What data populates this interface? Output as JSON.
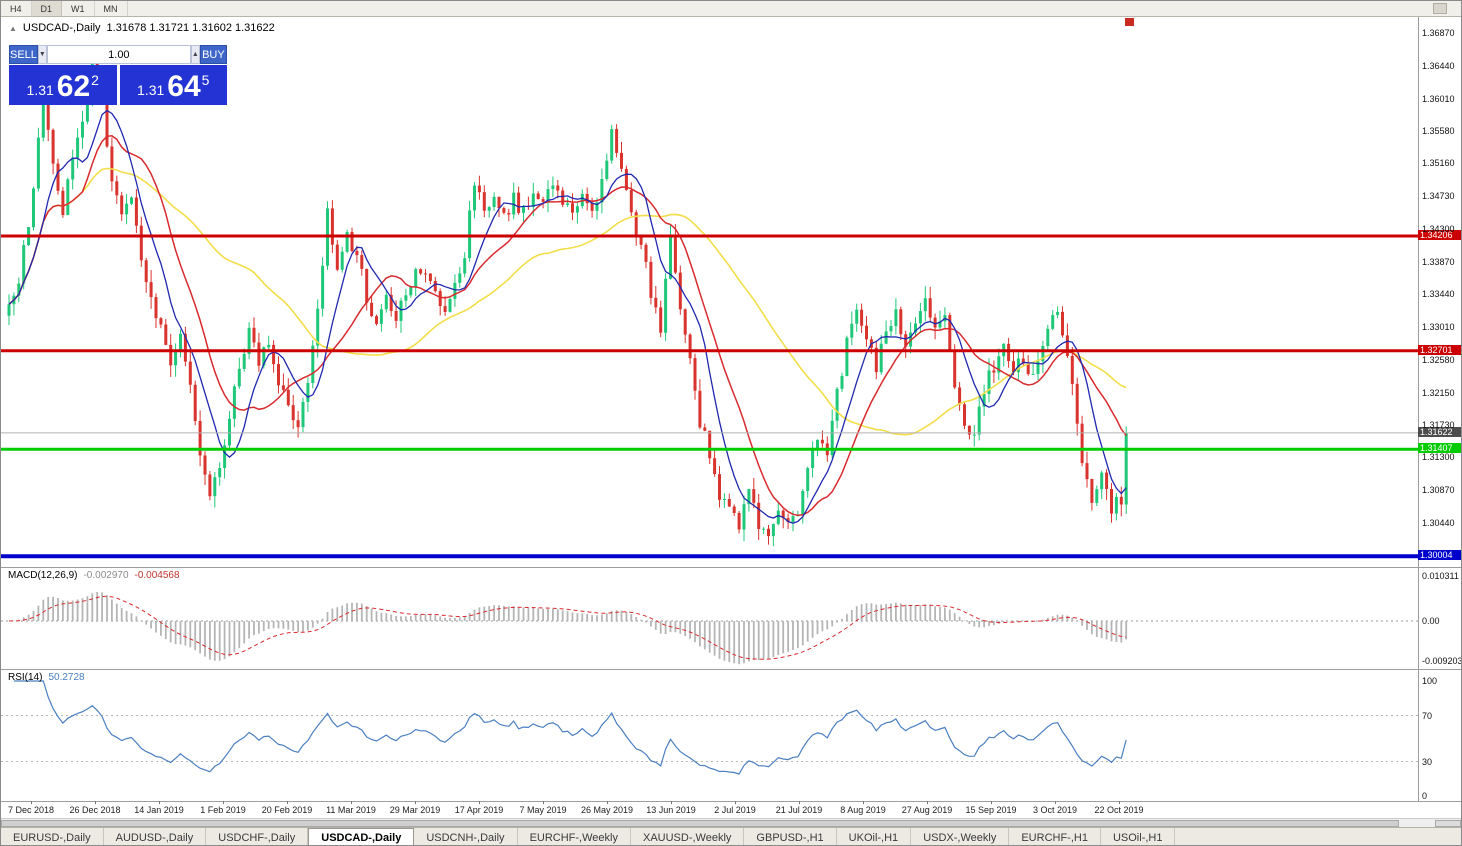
{
  "toolbar": {
    "timeframes": [
      "H4",
      "D1",
      "W1",
      "MN"
    ],
    "active": "D1"
  },
  "chart_header": {
    "symbol": "USDCAD-,Daily",
    "ohlc": "1.31678 1.31721 1.31602 1.31622",
    "toggle_icon": "▲"
  },
  "trade_panel": {
    "sell_label": "SELL",
    "buy_label": "BUY",
    "volume": "1.00",
    "down_icon": "▼",
    "up_icon": "▲",
    "sell": {
      "prefix": "1.31",
      "big": "62",
      "sup": "2"
    },
    "buy": {
      "prefix": "1.31",
      "big": "64",
      "sup": "5"
    }
  },
  "macd_panel": {
    "title": "MACD(12,26,9)",
    "main": "-0.002970",
    "signal": "-0.004568",
    "axis": [
      "0.010311",
      "0.00",
      "-0.009203"
    ]
  },
  "rsi_panel": {
    "title": "RSI(14)",
    "value": "50.2728",
    "axis": [
      "100",
      "70",
      "30",
      "0"
    ]
  },
  "tabs": [
    "EURUSD-,Daily",
    "AUDUSD-,Daily",
    "USDCHF-,Daily",
    "USDCAD-,Daily",
    "USDCNH-,Daily",
    "EURCHF-,Weekly",
    "XAUUSD-,Weekly",
    "GBPUSD-,H1",
    "UKOil-,H1",
    "USDX-,Weekly",
    "EURCHF-,H1",
    "USOil-,H1"
  ],
  "active_tab_index": 3,
  "chart_data": {
    "type": "candlestick",
    "symbol": "USDCAD-",
    "timeframe": "Daily",
    "num_candles": 229,
    "seed": 20191031,
    "last_close": 1.31622,
    "y_axis_ticks": [
      "1.36870",
      "1.36440",
      "1.36010",
      "1.35580",
      "1.35160",
      "1.34730",
      "1.34300",
      "1.33870",
      "1.33440",
      "1.33010",
      "1.32580",
      "1.32150",
      "1.31730",
      "1.31300",
      "1.30870",
      "1.30440"
    ],
    "x_axis_labels": [
      "7 Dec 2018",
      "26 Dec 2018",
      "14 Jan 2019",
      "1 Feb 2019",
      "20 Feb 2019",
      "11 Mar 2019",
      "29 Mar 2019",
      "17 Apr 2019",
      "7 May 2019",
      "26 May 2019",
      "13 Jun 2019",
      "2 Jul 2019",
      "21 Jul 2019",
      "8 Aug 2019",
      "27 Aug 2019",
      "15 Sep 2019",
      "3 Oct 2019",
      "22 Oct 2019"
    ],
    "levels": [
      {
        "price": 1.34206,
        "label": "1.34206",
        "color": "#cc0000",
        "width": 3
      },
      {
        "price": 1.32701,
        "label": "1.32701",
        "color": "#cc0000",
        "width": 3
      },
      {
        "price": 1.31407,
        "label": "1.31407",
        "color": "#00cc00",
        "width": 3
      },
      {
        "price": 1.30004,
        "label": "1.30004",
        "color": "#0000cc",
        "width": 4
      }
    ],
    "current_price": {
      "value": 1.31622,
      "label": "1.31622",
      "line_color": "#b0b0b0",
      "label_bg": "#4d4d4d"
    },
    "colors": {
      "bull": "#1ec878",
      "bear": "#d9332e",
      "ma_fast": "#2028b0",
      "ma_mid": "#d92a2e",
      "ma_slow": "#f3de49",
      "macd_hist": "#b5b5b5",
      "macd_signal": "#d92a2e",
      "rsi": "#4a7fc1",
      "level_dotted": "#b8b8b8"
    },
    "ma_periods": {
      "fast": 8,
      "mid": 16,
      "slow": 45
    },
    "macd_params": [
      12,
      26,
      9
    ],
    "rsi_period": 14,
    "rsi_levels": [
      70,
      30
    ],
    "price_anchors": [
      [
        0,
        1.3335
      ],
      [
        2,
        1.336
      ],
      [
        5,
        1.348
      ],
      [
        7,
        1.362
      ],
      [
        9,
        1.352
      ],
      [
        11,
        1.3455
      ],
      [
        13,
        1.353
      ],
      [
        15,
        1.3565
      ],
      [
        17,
        1.365
      ],
      [
        19,
        1.3605
      ],
      [
        21,
        1.349
      ],
      [
        23,
        1.3445
      ],
      [
        25,
        1.3465
      ],
      [
        27,
        1.3385
      ],
      [
        29,
        1.333
      ],
      [
        31,
        1.3295
      ],
      [
        33,
        1.326
      ],
      [
        35,
        1.329
      ],
      [
        37,
        1.3225
      ],
      [
        39,
        1.3135
      ],
      [
        41,
        1.3085
      ],
      [
        43,
        1.311
      ],
      [
        45,
        1.319
      ],
      [
        47,
        1.325
      ],
      [
        49,
        1.3295
      ],
      [
        51,
        1.3255
      ],
      [
        53,
        1.3285
      ],
      [
        55,
        1.3235
      ],
      [
        57,
        1.3195
      ],
      [
        59,
        1.3165
      ],
      [
        61,
        1.3225
      ],
      [
        63,
        1.3325
      ],
      [
        65,
        1.345
      ],
      [
        67,
        1.3385
      ],
      [
        69,
        1.342
      ],
      [
        71,
        1.34
      ],
      [
        73,
        1.3335
      ],
      [
        75,
        1.3315
      ],
      [
        77,
        1.335
      ],
      [
        79,
        1.3315
      ],
      [
        81,
        1.3345
      ],
      [
        83,
        1.337
      ],
      [
        85,
        1.338
      ],
      [
        87,
        1.335
      ],
      [
        89,
        1.3325
      ],
      [
        91,
        1.336
      ],
      [
        93,
        1.34
      ],
      [
        95,
        1.3495
      ],
      [
        97,
        1.345
      ],
      [
        99,
        1.348
      ],
      [
        101,
        1.3445
      ],
      [
        103,
        1.347
      ],
      [
        105,
        1.345
      ],
      [
        107,
        1.348
      ],
      [
        109,
        1.3465
      ],
      [
        111,
        1.349
      ],
      [
        113,
        1.347
      ],
      [
        115,
        1.3455
      ],
      [
        117,
        1.348
      ],
      [
        119,
        1.3445
      ],
      [
        121,
        1.349
      ],
      [
        123,
        1.356
      ],
      [
        125,
        1.3505
      ],
      [
        127,
        1.3455
      ],
      [
        129,
        1.3405
      ],
      [
        131,
        1.335
      ],
      [
        133,
        1.3295
      ],
      [
        135,
        1.342
      ],
      [
        137,
        1.333
      ],
      [
        139,
        1.327
      ],
      [
        141,
        1.318
      ],
      [
        143,
        1.313
      ],
      [
        145,
        1.3085
      ],
      [
        147,
        1.306
      ],
      [
        149,
        1.3042
      ],
      [
        151,
        1.308
      ],
      [
        153,
        1.3042
      ],
      [
        155,
        1.3022
      ],
      [
        157,
        1.306
      ],
      [
        159,
        1.3042
      ],
      [
        161,
        1.3052
      ],
      [
        163,
        1.311
      ],
      [
        165,
        1.316
      ],
      [
        167,
        1.314
      ],
      [
        169,
        1.321
      ],
      [
        171,
        1.328
      ],
      [
        173,
        1.332
      ],
      [
        175,
        1.3292
      ],
      [
        177,
        1.3252
      ],
      [
        179,
        1.3292
      ],
      [
        181,
        1.332
      ],
      [
        183,
        1.3282
      ],
      [
        185,
        1.331
      ],
      [
        187,
        1.333
      ],
      [
        189,
        1.3292
      ],
      [
        191,
        1.332
      ],
      [
        193,
        1.3232
      ],
      [
        195,
        1.3182
      ],
      [
        197,
        1.315
      ],
      [
        199,
        1.3222
      ],
      [
        201,
        1.3252
      ],
      [
        203,
        1.3282
      ],
      [
        205,
        1.3242
      ],
      [
        207,
        1.3262
      ],
      [
        209,
        1.3232
      ],
      [
        211,
        1.3282
      ],
      [
        213,
        1.3322
      ],
      [
        215,
        1.33
      ],
      [
        217,
        1.322
      ],
      [
        219,
        1.313
      ],
      [
        221,
        1.308
      ],
      [
        223,
        1.3105
      ],
      [
        225,
        1.3062
      ],
      [
        227,
        1.3078
      ],
      [
        228,
        1.31622
      ]
    ]
  }
}
